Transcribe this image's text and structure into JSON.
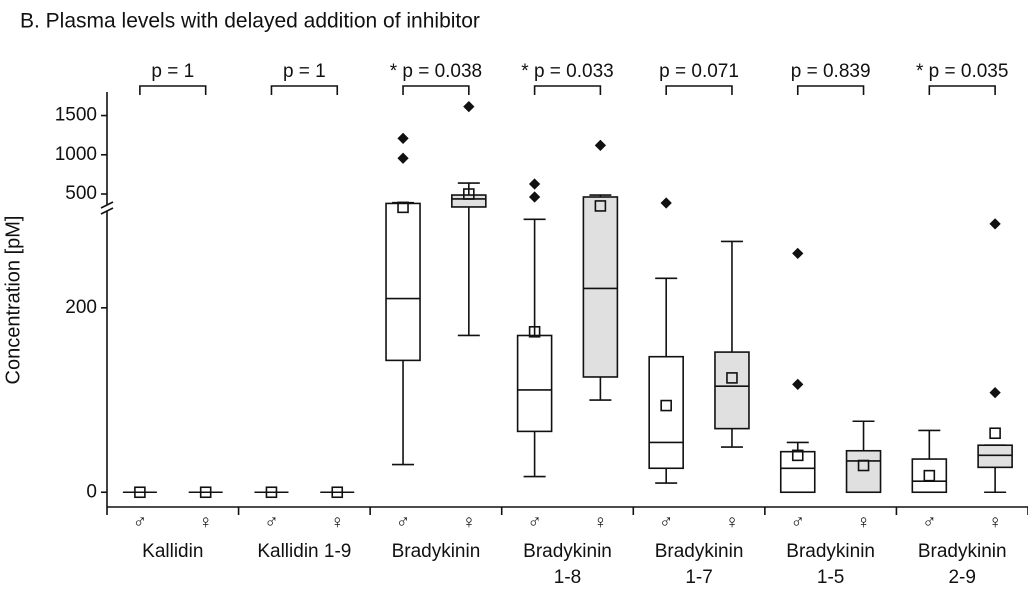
{
  "chart_data": {
    "type": "box",
    "title": "B. Plasma levels with delayed addition of inhibitor",
    "y_label": "Concentration [pM]",
    "ylim": [
      -16,
      1800
    ],
    "axis_break": [
      305,
      360
    ],
    "yticks": [
      0,
      200,
      500,
      1000,
      1500
    ],
    "groups": [
      {
        "name_lines": [
          "Kallidin"
        ],
        "p_label": "p = 1",
        "boxes": [
          {
            "category": "♂",
            "fill": "#ffffff",
            "whislo": 0,
            "q1": 0,
            "med": 0,
            "q3": 0,
            "whishi": 0,
            "mean": 0,
            "fliers": []
          },
          {
            "category": "♀",
            "fill": "#e0e0e0",
            "whislo": 0,
            "q1": 0,
            "med": 0,
            "q3": 0,
            "whishi": 0,
            "mean": 0,
            "fliers": []
          }
        ]
      },
      {
        "name_lines": [
          "Kallidin 1-9"
        ],
        "p_label": "p = 1",
        "boxes": [
          {
            "category": "♂",
            "fill": "#ffffff",
            "whislo": 0,
            "q1": 0,
            "med": 0,
            "q3": 0,
            "whishi": 0,
            "mean": 0,
            "fliers": []
          },
          {
            "category": "♀",
            "fill": "#e0e0e0",
            "whislo": 0,
            "q1": 0,
            "med": 0,
            "q3": 0,
            "whishi": 0,
            "mean": 0,
            "fliers": []
          }
        ]
      },
      {
        "name_lines": [
          "Bradykinin"
        ],
        "p_label": "* p = 0.038",
        "boxes": [
          {
            "category": "♂",
            "fill": "#ffffff",
            "whislo": 30,
            "q1": 143,
            "med": 210,
            "q3": 380,
            "whishi": 390,
            "mean": 330,
            "fliers": [
              956,
              1209
            ]
          },
          {
            "category": "♀",
            "fill": "#e0e0e0",
            "whislo": 170,
            "q1": 335,
            "med": 437,
            "q3": 487,
            "whishi": 640,
            "mean": 500,
            "fliers": [
              1614
            ]
          }
        ]
      },
      {
        "name_lines": [
          "Bradykinin",
          "1-8"
        ],
        "p_label": "* p = 0.033",
        "boxes": [
          {
            "category": "♂",
            "fill": "#ffffff",
            "whislo": 17,
            "q1": 66,
            "med": 111,
            "q3": 170,
            "whishi": 296,
            "mean": 174,
            "fliers": [
              462,
              627
            ]
          },
          {
            "category": "♀",
            "fill": "#e0e0e0",
            "whislo": 100,
            "q1": 125,
            "med": 221,
            "q3": 462,
            "whishi": 487,
            "mean": 348,
            "fliers": [
              1120
            ]
          }
        ]
      },
      {
        "name_lines": [
          "Bradykinin",
          "1-7"
        ],
        "p_label": "p = 0.071",
        "boxes": [
          {
            "category": "♂",
            "fill": "#ffffff",
            "whislo": 10,
            "q1": 26,
            "med": 54,
            "q3": 147,
            "whishi": 232,
            "mean": 94,
            "fliers": [
              386
            ]
          },
          {
            "category": "♀",
            "fill": "#e0e0e0",
            "whislo": 49,
            "q1": 69,
            "med": 115,
            "q3": 152,
            "whishi": 272,
            "mean": 124,
            "fliers": []
          }
        ]
      },
      {
        "name_lines": [
          "Bradykinin",
          "1-5"
        ],
        "p_label": "p = 0.839",
        "boxes": [
          {
            "category": "♂",
            "fill": "#ffffff",
            "whislo": 0,
            "q1": 0,
            "med": 26,
            "q3": 44,
            "whishi": 54,
            "mean": 40,
            "fliers": [
              117,
              259
            ]
          },
          {
            "category": "♀",
            "fill": "#e0e0e0",
            "whislo": 0,
            "q1": 0,
            "med": 34,
            "q3": 45,
            "whishi": 77,
            "mean": 29,
            "fliers": []
          }
        ]
      },
      {
        "name_lines": [
          "Bradykinin",
          "2-9"
        ],
        "p_label": "* p = 0.035",
        "boxes": [
          {
            "category": "♂",
            "fill": "#ffffff",
            "whislo": 0,
            "q1": 0,
            "med": 12,
            "q3": 36,
            "whishi": 67,
            "mean": 18,
            "fliers": []
          },
          {
            "category": "♀",
            "fill": "#e0e0e0",
            "whislo": 0,
            "q1": 27,
            "med": 40,
            "q3": 51,
            "whishi": 51,
            "mean": 64,
            "fliers": [
              108,
              291
            ]
          }
        ]
      }
    ]
  }
}
